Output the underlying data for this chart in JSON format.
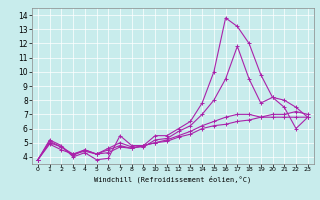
{
  "xlabel": "Windchill (Refroidissement éolien,°C)",
  "xlim": [
    -0.5,
    23.5
  ],
  "ylim": [
    3.5,
    14.5
  ],
  "xticks": [
    0,
    1,
    2,
    3,
    4,
    5,
    6,
    7,
    8,
    9,
    10,
    11,
    12,
    13,
    14,
    15,
    16,
    17,
    18,
    19,
    20,
    21,
    22,
    23
  ],
  "yticks": [
    4,
    5,
    6,
    7,
    8,
    9,
    10,
    11,
    12,
    13,
    14
  ],
  "line_color": "#aa22aa",
  "bg_color": "#c8ecec",
  "grid_color": "#aadddd",
  "lines": [
    {
      "x": [
        0,
        1,
        2,
        3,
        4,
        5,
        6,
        7,
        8,
        9,
        10,
        11,
        12,
        13,
        14,
        15,
        16,
        17,
        18,
        19,
        20,
        21,
        22,
        23
      ],
      "y": [
        3.8,
        5.2,
        4.8,
        4.0,
        4.3,
        3.8,
        3.9,
        5.5,
        4.8,
        4.8,
        5.5,
        5.5,
        6.0,
        6.5,
        7.8,
        10.0,
        13.8,
        13.2,
        12.0,
        9.8,
        8.2,
        7.5,
        6.0,
        6.8
      ]
    },
    {
      "x": [
        0,
        1,
        2,
        3,
        4,
        5,
        6,
        7,
        8,
        9,
        10,
        11,
        12,
        13,
        14,
        15,
        16,
        17,
        18,
        19,
        20,
        21,
        22,
        23
      ],
      "y": [
        3.8,
        5.1,
        4.7,
        4.1,
        4.5,
        4.2,
        4.6,
        5.0,
        4.7,
        4.7,
        5.2,
        5.3,
        5.8,
        6.2,
        7.0,
        8.0,
        9.5,
        11.8,
        9.5,
        7.8,
        8.2,
        8.0,
        7.5,
        6.8
      ]
    },
    {
      "x": [
        0,
        1,
        2,
        3,
        4,
        5,
        6,
        7,
        8,
        9,
        10,
        11,
        12,
        13,
        14,
        15,
        16,
        17,
        18,
        19,
        20,
        21,
        22,
        23
      ],
      "y": [
        3.8,
        5.0,
        4.7,
        4.2,
        4.5,
        4.2,
        4.5,
        4.8,
        4.6,
        4.8,
        5.0,
        5.2,
        5.5,
        5.8,
        6.2,
        6.5,
        6.8,
        7.0,
        7.0,
        6.8,
        7.0,
        7.0,
        7.2,
        7.0
      ]
    },
    {
      "x": [
        0,
        1,
        2,
        3,
        4,
        5,
        6,
        7,
        8,
        9,
        10,
        11,
        12,
        13,
        14,
        15,
        16,
        17,
        18,
        19,
        20,
        21,
        22,
        23
      ],
      "y": [
        3.8,
        4.9,
        4.5,
        4.2,
        4.4,
        4.2,
        4.3,
        4.7,
        4.6,
        4.8,
        5.0,
        5.1,
        5.4,
        5.6,
        6.0,
        6.2,
        6.3,
        6.5,
        6.6,
        6.8,
        6.8,
        6.8,
        6.8,
        6.8
      ]
    }
  ]
}
